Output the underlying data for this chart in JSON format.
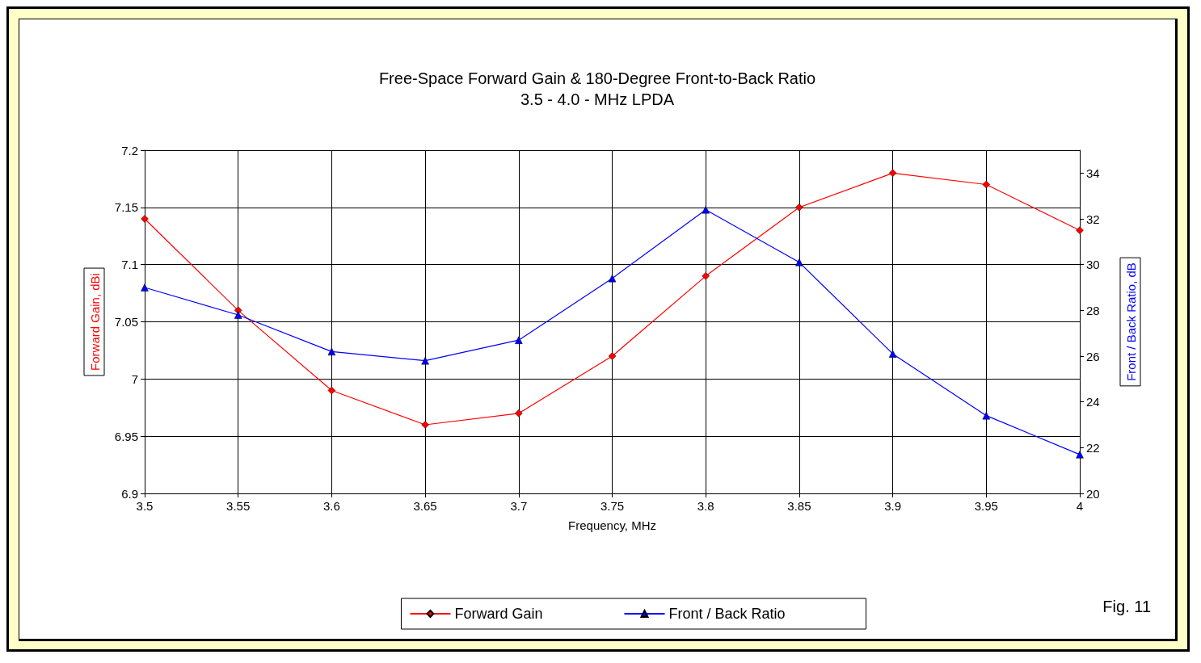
{
  "chart_data": {
    "type": "line",
    "title": "Free-Space Forward Gain & 180-Degree Front-to-Back Ratio",
    "subtitle": "3.5 - 4.0 - MHz LPDA",
    "xlabel": "Frequency, MHz",
    "ylabel": "Forward Gain, dBi",
    "y2label": "Front / Back Ratio, dB",
    "x": [
      3.5,
      3.55,
      3.6,
      3.65,
      3.7,
      3.75,
      3.8,
      3.85,
      3.9,
      3.95,
      4
    ],
    "series": [
      {
        "name": "Forward Gain",
        "color": "#ff0000",
        "marker": "diamond",
        "values": [
          7.14,
          7.06,
          6.99,
          6.96,
          6.97,
          7.02,
          7.09,
          7.15,
          7.18,
          7.17,
          7.13
        ]
      },
      {
        "name": "Front / Back Ratio",
        "color": "#0000ff",
        "marker": "triangle",
        "axis": "y2",
        "values": [
          29.0,
          27.8,
          26.2,
          25.8,
          26.7,
          29.4,
          32.4,
          30.1,
          26.1,
          23.4,
          21.7
        ]
      }
    ],
    "xlim": [
      3.5,
      4
    ],
    "xticks": [
      3.5,
      3.55,
      3.6,
      3.65,
      3.7,
      3.75,
      3.8,
      3.85,
      3.9,
      3.95,
      4
    ],
    "ylim": [
      6.9,
      7.2
    ],
    "yticks": [
      6.9,
      6.95,
      7,
      7.05,
      7.1,
      7.15,
      7.2
    ],
    "y2lim": [
      20,
      35
    ],
    "y2ticks": [
      20,
      22,
      24,
      26,
      28,
      30,
      32,
      34
    ],
    "grid": true,
    "legend": "bottom",
    "line_style": "solid",
    "annotations": [
      "Fig. 11"
    ]
  }
}
